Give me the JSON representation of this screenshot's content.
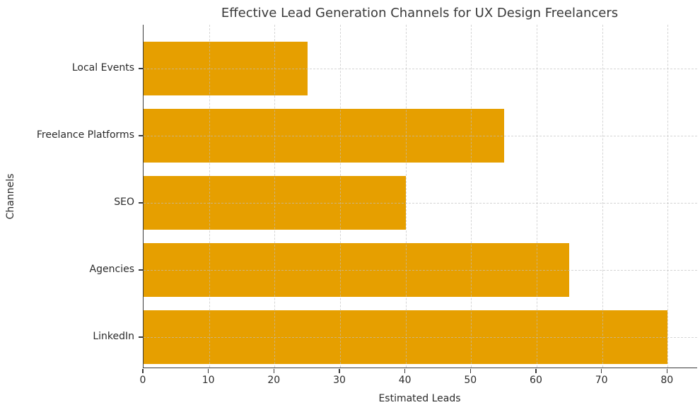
{
  "figure": {
    "background": "#ffffff"
  },
  "chart_data": {
    "type": "bar",
    "orientation": "horizontal",
    "title": "Effective Lead Generation Channels for UX Design Freelancers",
    "xlabel": "Estimated Leads",
    "ylabel": "Channels",
    "categories": [
      "Local Events",
      "Freelance Platforms",
      "SEO",
      "Agencies",
      "LinkedIn"
    ],
    "values": [
      25,
      55,
      40,
      65,
      80
    ],
    "xticks": [
      0,
      10,
      20,
      30,
      40,
      50,
      60,
      70,
      80
    ],
    "xlim": [
      0,
      84.5
    ],
    "bar_color": "#E69F00",
    "grid": true,
    "grid_style": "dashed",
    "grid_color": "#BEBEBE",
    "legend": "none"
  }
}
